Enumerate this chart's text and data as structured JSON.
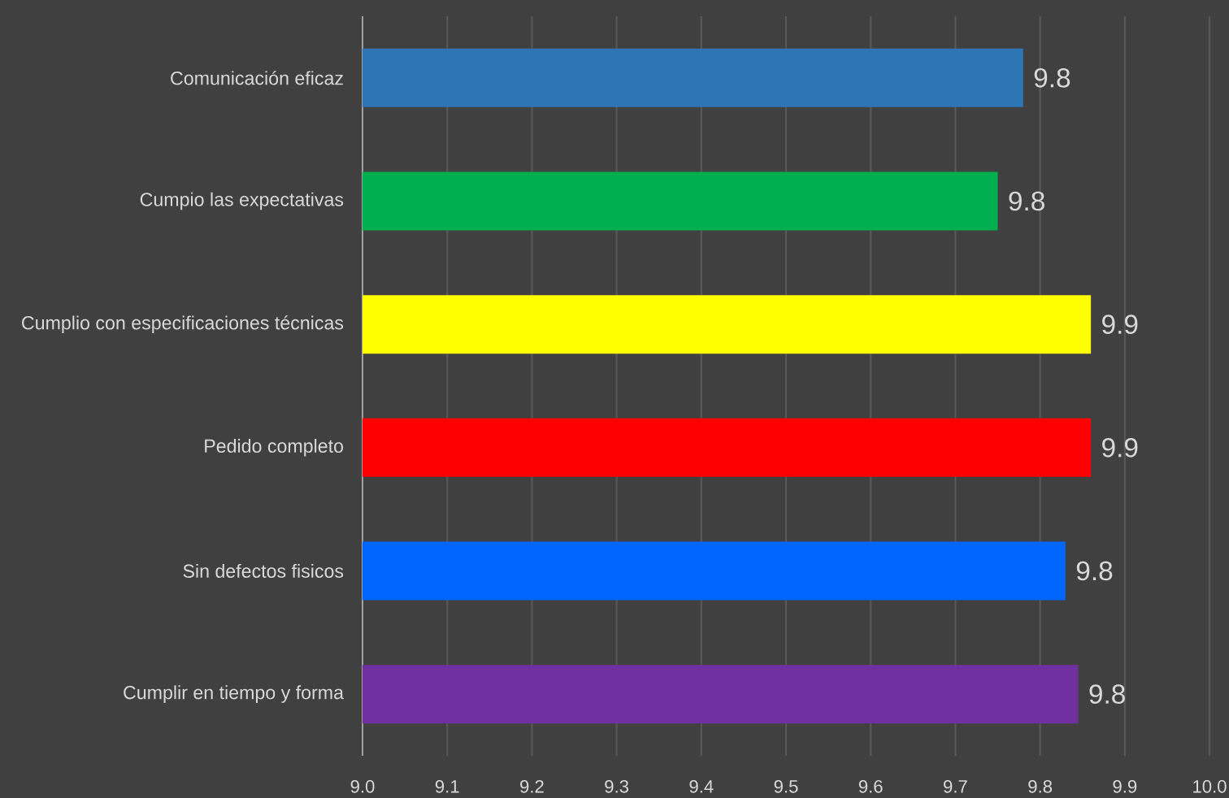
{
  "chart_data": {
    "type": "bar",
    "orientation": "horizontal",
    "categories": [
      "Comunicación eficaz",
      "Cumpio las expectativas",
      "Cumplio con especificaciones técnicas",
      "Pedido completo",
      "Sin defectos fisicos",
      "Cumplir en tiempo y forma"
    ],
    "values": [
      9.78,
      9.75,
      9.86,
      9.86,
      9.83,
      9.845
    ],
    "colors": [
      "#2e75b6",
      "#00b050",
      "#ffff00",
      "#ff0000",
      "#0066ff",
      "#7030a0"
    ],
    "value_labels": [
      "9.8",
      "9.8",
      "9.9",
      "9.9",
      "9.8",
      "9.8"
    ],
    "xlim": [
      9.0,
      10.0
    ],
    "xticks": [
      {
        "value": 9.0,
        "label": "9.0"
      },
      9.1,
      9.2,
      9.3,
      9.4,
      9.5,
      9.6,
      9.7,
      9.8,
      9.9,
      {
        "value": 10.0,
        "label": "10.0"
      }
    ],
    "grid": "x"
  }
}
